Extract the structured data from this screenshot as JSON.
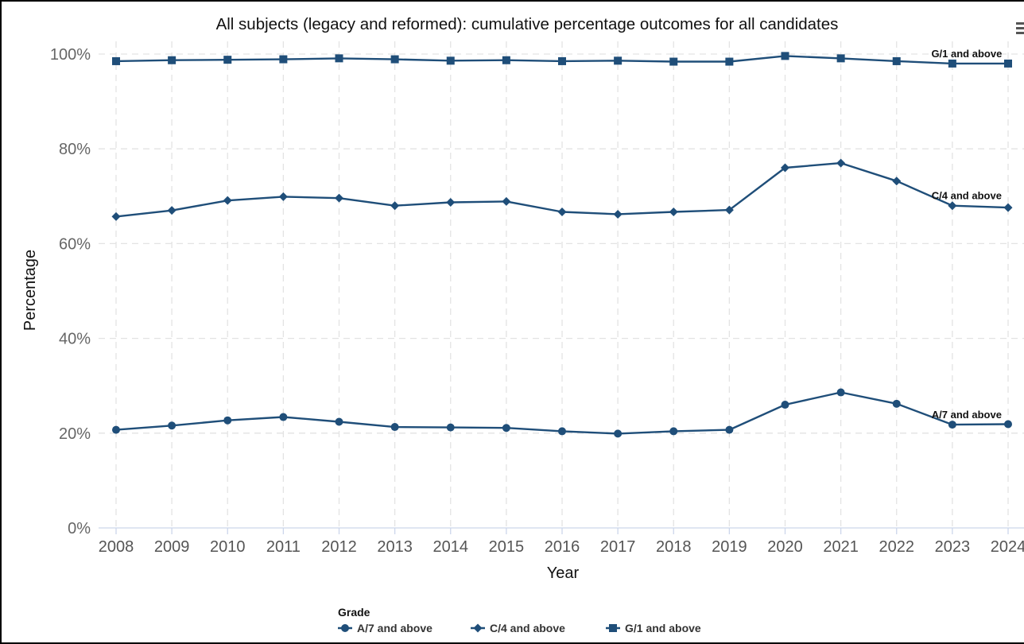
{
  "chart_data": {
    "type": "line",
    "title": "All subjects (legacy and reformed): cumulative percentage outcomes for all candidates",
    "xlabel": "Year",
    "ylabel": "Percentage",
    "x": [
      "2008",
      "2009",
      "2010",
      "2011",
      "2012",
      "2013",
      "2014",
      "2015",
      "2016",
      "2017",
      "2018",
      "2019",
      "2020",
      "2021",
      "2022",
      "2023",
      "2024"
    ],
    "ylim": [
      0,
      100
    ],
    "yticks": [
      "0%",
      "20%",
      "40%",
      "60%",
      "80%",
      "100%"
    ],
    "grid": true,
    "legend_title": "Grade",
    "legend_position": "bottom",
    "series": [
      {
        "name": "A/7 and above",
        "marker": "circle",
        "color": "#1f4e79",
        "values": [
          20.7,
          21.6,
          22.7,
          23.4,
          22.4,
          21.3,
          21.2,
          21.1,
          20.4,
          19.9,
          20.4,
          20.7,
          26.0,
          28.6,
          26.2,
          21.8,
          21.9
        ]
      },
      {
        "name": "C/4 and above",
        "marker": "diamond",
        "color": "#1f4e79",
        "values": [
          65.7,
          67.0,
          69.1,
          69.9,
          69.6,
          68.0,
          68.7,
          68.9,
          66.7,
          66.2,
          66.7,
          67.1,
          76.0,
          77.0,
          73.2,
          68.0,
          67.6
        ]
      },
      {
        "name": "G/1 and above",
        "marker": "square",
        "color": "#1f4e79",
        "values": [
          98.5,
          98.7,
          98.8,
          98.9,
          99.1,
          98.9,
          98.6,
          98.7,
          98.5,
          98.6,
          98.4,
          98.4,
          99.6,
          99.1,
          98.5,
          98.0,
          98.0
        ]
      }
    ]
  }
}
